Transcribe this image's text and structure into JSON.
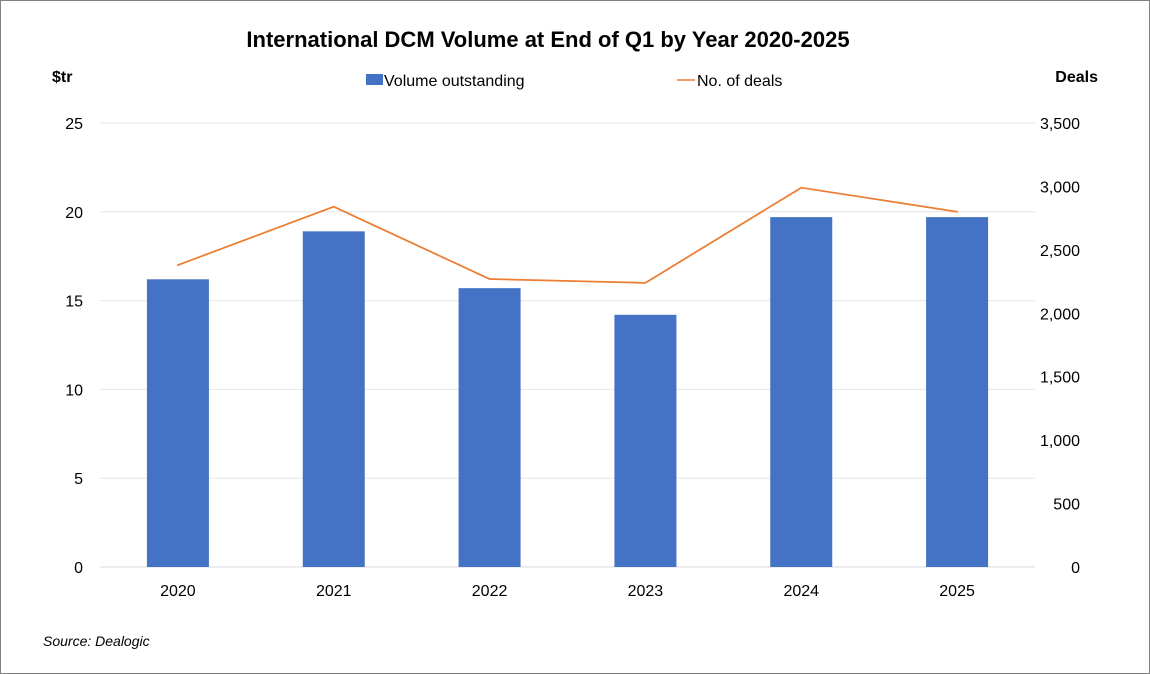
{
  "chart_data": {
    "type": "bar",
    "title": "International DCM Volume at End of Q1 by Year 2020-2025",
    "categories": [
      "2020",
      "2021",
      "2022",
      "2023",
      "2024",
      "2025"
    ],
    "series": [
      {
        "name": "Volume outstanding",
        "type": "bar",
        "axis": "left",
        "color": "#4472C4",
        "values": [
          16.2,
          18.9,
          15.7,
          14.2,
          19.7,
          19.7
        ]
      },
      {
        "name": "No. of deals",
        "type": "line",
        "axis": "right",
        "color": "#ED7D31",
        "values": [
          2380,
          2840,
          2270,
          2240,
          2990,
          2800
        ]
      }
    ],
    "y_left": {
      "label": "$tr",
      "ylim": [
        0,
        25
      ],
      "ticks": [
        "0",
        "5",
        "10",
        "15",
        "20",
        "25"
      ]
    },
    "y_right": {
      "label": "Deals",
      "ylim": [
        0,
        3500
      ],
      "ticks": [
        "0",
        "500",
        "1,000",
        "1,500",
        "2,000",
        "2,500",
        "3,000",
        "3,500"
      ]
    },
    "grid": true,
    "legend": "top-center"
  },
  "source": "Source: Dealogic"
}
